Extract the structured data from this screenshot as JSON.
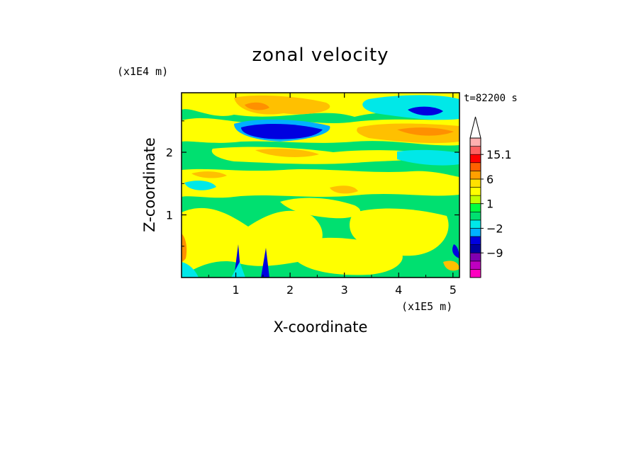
{
  "chart_data": {
    "type": "heatmap",
    "title": "zonal velocity",
    "xlabel": "X-coordinate",
    "ylabel": "Z-coordinate",
    "x_scale_label": "(x1E5 m)",
    "y_scale_label": "(x1E4 m)",
    "time_label": "t=82200 s",
    "xlim": [
      0,
      5.12
    ],
    "ylim": [
      0,
      2.95
    ],
    "x_ticks": [
      "1",
      "2",
      "3",
      "4",
      "5"
    ],
    "x_tick_values": [
      1,
      2,
      3,
      4,
      5
    ],
    "y_ticks": [
      "1",
      "2"
    ],
    "y_tick_values": [
      1,
      2
    ],
    "colorbar": {
      "colors": [
        "#ff00c0",
        "#c000c0",
        "#8000b0",
        "#0000a0",
        "#0000e0",
        "#00b0ff",
        "#00e8e8",
        "#00e070",
        "#00ff40",
        "#c0ff00",
        "#ffff00",
        "#ffe000",
        "#ffa000",
        "#ff6000",
        "#ff0000",
        "#ff6060",
        "#ffb0b0",
        "#ffffff"
      ],
      "labels": [
        "15.1",
        "6",
        "1",
        "−2",
        "−9"
      ],
      "label_levels": [
        15.1,
        6,
        1,
        -2,
        -9
      ],
      "label_bins": [
        15,
        12,
        9,
        6,
        3
      ]
    },
    "colors": {
      "background": "#00e070",
      "yellow": "#ffff00",
      "orange": "#ffc000",
      "dark_orange": "#ff9000",
      "cyan": "#00e8e8",
      "light_blue": "#00b0ff",
      "blue": "#0000e0",
      "navy": "#0000a0"
    }
  }
}
